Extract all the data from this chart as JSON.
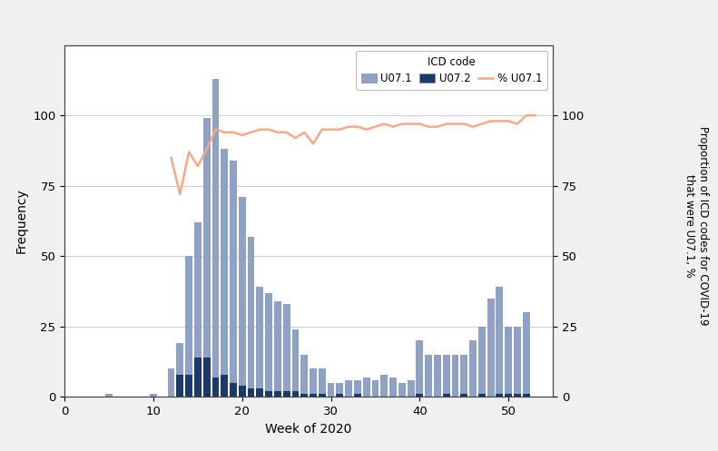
{
  "weeks": [
    5,
    10,
    11,
    12,
    13,
    14,
    15,
    16,
    17,
    18,
    19,
    20,
    21,
    22,
    23,
    24,
    25,
    26,
    27,
    28,
    29,
    30,
    31,
    32,
    33,
    34,
    35,
    36,
    37,
    38,
    39,
    40,
    41,
    42,
    43,
    44,
    45,
    46,
    47,
    48,
    49,
    50,
    51,
    52,
    53
  ],
  "u071": [
    1,
    1,
    0,
    10,
    19,
    50,
    62,
    99,
    113,
    88,
    84,
    71,
    57,
    39,
    37,
    34,
    33,
    24,
    15,
    10,
    10,
    5,
    5,
    6,
    6,
    7,
    6,
    8,
    7,
    5,
    6,
    20,
    15,
    15,
    15,
    15,
    15,
    20,
    25,
    35,
    39,
    25,
    25,
    30,
    0
  ],
  "u072": [
    0,
    0,
    0,
    0,
    8,
    8,
    14,
    14,
    7,
    8,
    5,
    4,
    3,
    3,
    2,
    2,
    2,
    2,
    1,
    1,
    1,
    0,
    1,
    0,
    1,
    0,
    0,
    0,
    0,
    0,
    0,
    1,
    0,
    0,
    1,
    0,
    1,
    0,
    1,
    0,
    1,
    1,
    1,
    1,
    0
  ],
  "pct_u071": [
    null,
    null,
    null,
    85,
    72,
    87,
    82,
    88,
    95,
    94,
    94,
    93,
    94,
    95,
    95,
    94,
    94,
    92,
    94,
    90,
    95,
    95,
    95,
    96,
    96,
    95,
    96,
    97,
    96,
    97,
    97,
    97,
    96,
    96,
    97,
    97,
    97,
    96,
    97,
    98,
    98,
    98,
    97,
    100,
    100
  ],
  "u071_color": "#8fa2c5",
  "u072_color": "#1a3a6b",
  "pct_color": "#f4a98a",
  "ylim_left": [
    0,
    125
  ],
  "ylim_right": [
    0,
    125
  ],
  "yticks_left": [
    0,
    25,
    50,
    75,
    100
  ],
  "yticks_right": [
    0,
    25,
    50,
    75,
    100
  ],
  "xlim": [
    0,
    55
  ],
  "xticks": [
    0,
    10,
    20,
    30,
    40,
    50
  ],
  "xlabel": "Week of 2020",
  "ylabel_left": "Frequency",
  "ylabel_right": "Proportion of ICD codes for COVID-19\nthat were U07.1, %",
  "legend_title": "ICD code",
  "bg_color": "#f0f0f0",
  "plot_bg_color": "#ffffff",
  "grid_color": "#cccccc",
  "outer_border_color": "#b0b0b0",
  "figsize": [
    7.91,
    4.97
  ]
}
